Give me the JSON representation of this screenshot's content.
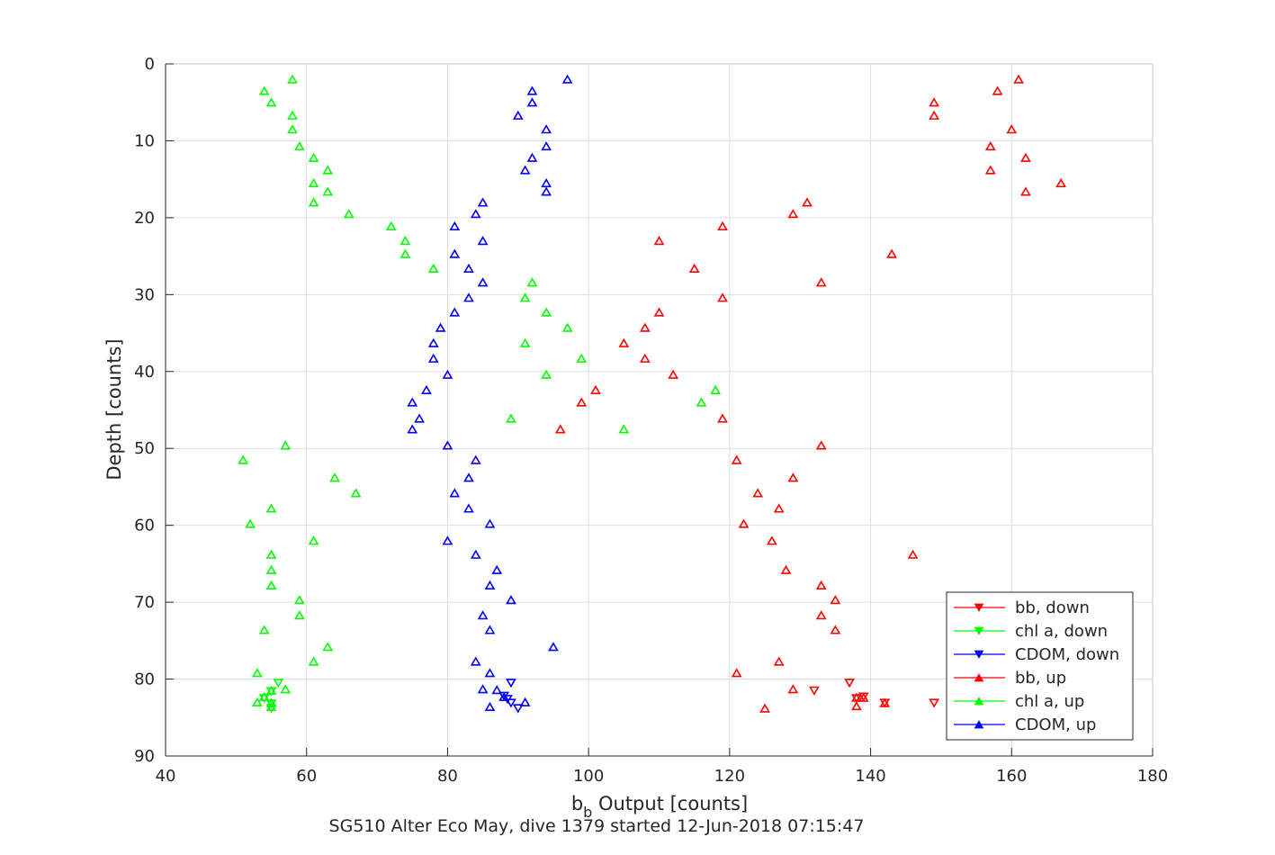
{
  "chart_data": {
    "type": "scatter",
    "title": "SG510 Alter Eco May, dive 1379 started 12-Jun-2018 07:15:47",
    "xlabel": "b_b Output [counts]",
    "ylabel": "Depth [counts]",
    "xlim": [
      40,
      180
    ],
    "ylim": [
      0,
      90
    ],
    "y_reversed": true,
    "grid": true,
    "legend_position": "bottom-right",
    "xticks": [
      40,
      60,
      80,
      100,
      120,
      140,
      160,
      180
    ],
    "yticks": [
      0,
      10,
      20,
      30,
      40,
      50,
      60,
      70,
      80,
      90
    ],
    "series": [
      {
        "name": "bb, down",
        "color": "#ff0000",
        "marker": "triangle-down",
        "points": [
          [
            137,
            80.5
          ],
          [
            139,
            82.3
          ],
          [
            138,
            82.5
          ],
          [
            132,
            81.5
          ],
          [
            142,
            83.1
          ],
          [
            149,
            83.1
          ]
        ]
      },
      {
        "name": "chl a, down",
        "color": "#00ff00",
        "marker": "triangle-down",
        "points": [
          [
            56,
            80.5
          ],
          [
            55,
            81.6
          ],
          [
            54,
            82.5
          ],
          [
            55,
            83.2
          ],
          [
            55,
            83.8
          ]
        ]
      },
      {
        "name": "CDOM, down",
        "color": "#0000ff",
        "marker": "triangle-down",
        "points": [
          [
            89,
            80.5
          ],
          [
            88,
            82.2
          ],
          [
            88.5,
            82.6
          ],
          [
            89,
            83.1
          ],
          [
            90,
            83.8
          ]
        ]
      },
      {
        "name": "bb, up",
        "color": "#ff0000",
        "marker": "triangle-up",
        "points": [
          [
            161,
            2
          ],
          [
            158,
            3.5
          ],
          [
            149,
            5
          ],
          [
            149,
            6.7
          ],
          [
            160,
            8.5
          ],
          [
            157,
            10.7
          ],
          [
            162,
            12.2
          ],
          [
            157,
            13.8
          ],
          [
            167,
            15.5
          ],
          [
            162,
            16.6
          ],
          [
            131,
            18
          ],
          [
            129,
            19.5
          ],
          [
            119,
            21.1
          ],
          [
            110,
            23
          ],
          [
            143,
            24.7
          ],
          [
            115,
            26.6
          ],
          [
            133,
            28.4
          ],
          [
            119,
            30.4
          ],
          [
            110,
            32.3
          ],
          [
            108,
            34.3
          ],
          [
            105,
            36.3
          ],
          [
            108,
            38.3
          ],
          [
            112,
            40.4
          ],
          [
            101,
            42.4
          ],
          [
            99,
            44
          ],
          [
            119,
            46.1
          ],
          [
            96,
            47.5
          ],
          [
            133,
            49.6
          ],
          [
            121,
            51.5
          ],
          [
            129,
            53.8
          ],
          [
            124,
            55.8
          ],
          [
            127,
            57.8
          ],
          [
            122,
            59.8
          ],
          [
            126,
            62
          ],
          [
            146,
            63.8
          ],
          [
            128,
            65.8
          ],
          [
            133,
            67.8
          ],
          [
            135,
            69.7
          ],
          [
            133,
            71.7
          ],
          [
            135,
            73.6
          ],
          [
            127,
            77.7
          ],
          [
            121,
            79.2
          ],
          [
            129,
            81.3
          ],
          [
            139,
            82.4
          ],
          [
            138,
            82.4
          ],
          [
            142,
            83.1
          ],
          [
            138,
            83.5
          ],
          [
            125,
            83.8
          ]
        ]
      },
      {
        "name": "chl a, up",
        "color": "#00ff00",
        "marker": "triangle-up",
        "points": [
          [
            58,
            2
          ],
          [
            54,
            3.5
          ],
          [
            55,
            5
          ],
          [
            58,
            6.7
          ],
          [
            58,
            8.5
          ],
          [
            59,
            10.7
          ],
          [
            61,
            12.2
          ],
          [
            63,
            13.8
          ],
          [
            61,
            15.5
          ],
          [
            63,
            16.6
          ],
          [
            61,
            18
          ],
          [
            66,
            19.5
          ],
          [
            72,
            21.1
          ],
          [
            74,
            23
          ],
          [
            74,
            24.7
          ],
          [
            78,
            26.6
          ],
          [
            92,
            28.4
          ],
          [
            91,
            30.4
          ],
          [
            94,
            32.3
          ],
          [
            97,
            34.3
          ],
          [
            91,
            36.3
          ],
          [
            99,
            38.3
          ],
          [
            94,
            40.4
          ],
          [
            118,
            42.4
          ],
          [
            116,
            44
          ],
          [
            89,
            46.1
          ],
          [
            105,
            47.5
          ],
          [
            57,
            49.6
          ],
          [
            51,
            51.5
          ],
          [
            64,
            53.8
          ],
          [
            67,
            55.8
          ],
          [
            55,
            57.8
          ],
          [
            52,
            59.8
          ],
          [
            61,
            62
          ],
          [
            55,
            63.8
          ],
          [
            55,
            65.8
          ],
          [
            55,
            67.8
          ],
          [
            59,
            69.7
          ],
          [
            59,
            71.7
          ],
          [
            54,
            73.6
          ],
          [
            63,
            75.8
          ],
          [
            61,
            77.7
          ],
          [
            53,
            79.2
          ],
          [
            57,
            81.3
          ],
          [
            55,
            81.5
          ],
          [
            54,
            82.3
          ],
          [
            53,
            83
          ],
          [
            55,
            83.1
          ],
          [
            55,
            83.6
          ]
        ]
      },
      {
        "name": "CDOM, up",
        "color": "#0000ff",
        "marker": "triangle-up",
        "points": [
          [
            97,
            2
          ],
          [
            92,
            3.5
          ],
          [
            92,
            5
          ],
          [
            90,
            6.7
          ],
          [
            94,
            8.5
          ],
          [
            94,
            10.7
          ],
          [
            92,
            12.2
          ],
          [
            91,
            13.8
          ],
          [
            94,
            15.5
          ],
          [
            94,
            16.6
          ],
          [
            85,
            18
          ],
          [
            84,
            19.5
          ],
          [
            81,
            21.1
          ],
          [
            85,
            23
          ],
          [
            81,
            24.7
          ],
          [
            83,
            26.6
          ],
          [
            85,
            28.4
          ],
          [
            83,
            30.4
          ],
          [
            81,
            32.3
          ],
          [
            79,
            34.3
          ],
          [
            78,
            36.3
          ],
          [
            78,
            38.3
          ],
          [
            80,
            40.4
          ],
          [
            77,
            42.4
          ],
          [
            75,
            44
          ],
          [
            76,
            46.1
          ],
          [
            75,
            47.5
          ],
          [
            80,
            49.6
          ],
          [
            84,
            51.5
          ],
          [
            83,
            53.8
          ],
          [
            81,
            55.8
          ],
          [
            83,
            57.8
          ],
          [
            86,
            59.8
          ],
          [
            80,
            62
          ],
          [
            84,
            63.8
          ],
          [
            87,
            65.8
          ],
          [
            86,
            67.8
          ],
          [
            89,
            69.7
          ],
          [
            85,
            71.7
          ],
          [
            86,
            73.6
          ],
          [
            95,
            75.8
          ],
          [
            84,
            77.7
          ],
          [
            86,
            79.2
          ],
          [
            85,
            81.3
          ],
          [
            87,
            81.4
          ],
          [
            88,
            82.3
          ],
          [
            91,
            83
          ],
          [
            86,
            83.6
          ]
        ]
      }
    ]
  }
}
